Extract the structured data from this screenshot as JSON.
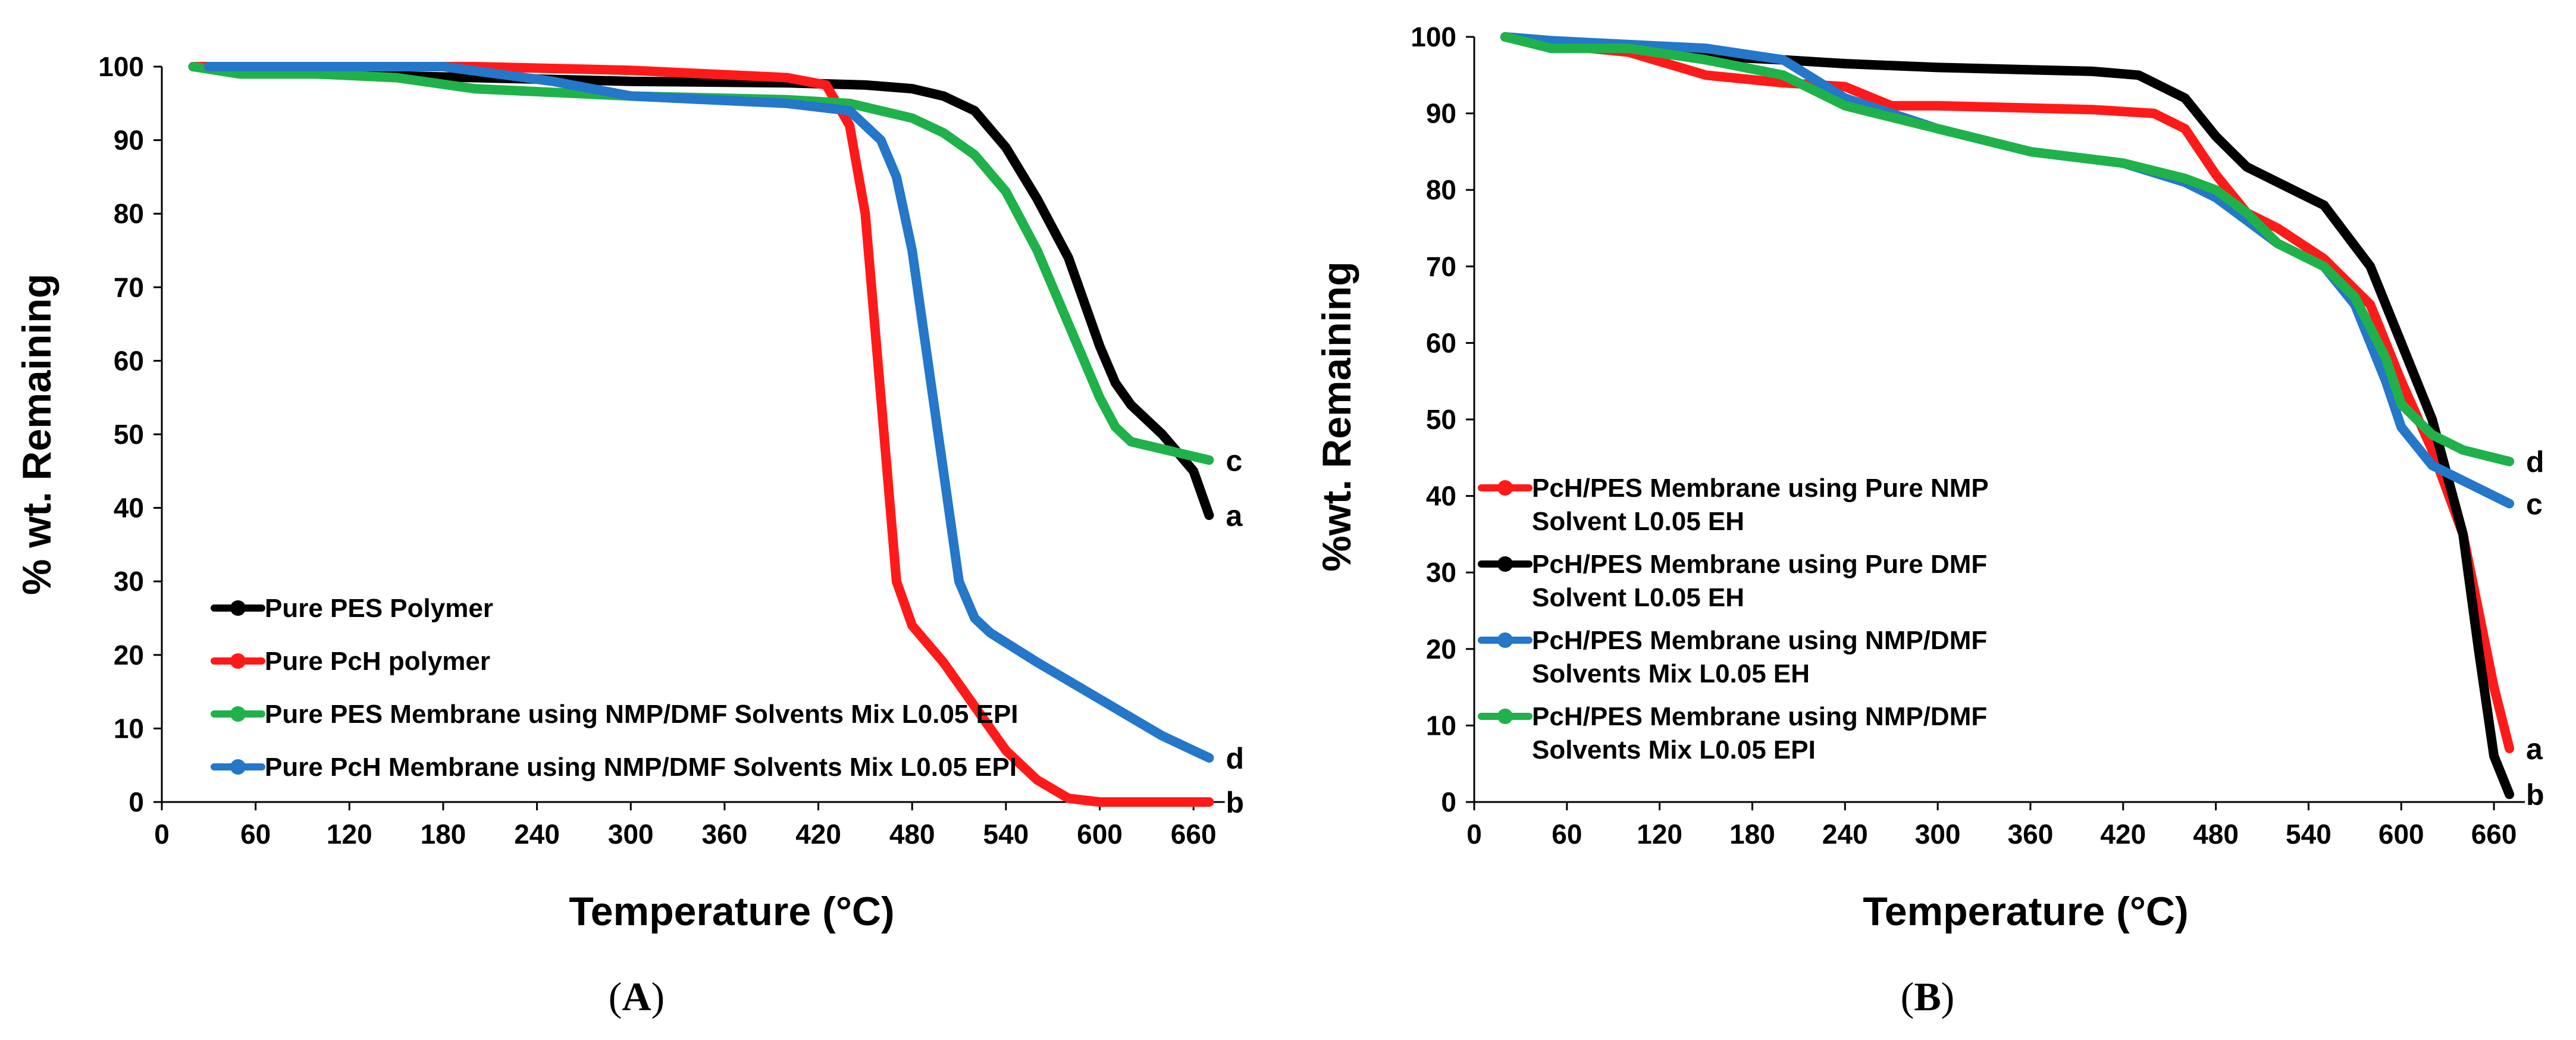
{
  "colors": {
    "red": "#ff1a1a",
    "black": "#000000",
    "green": "#1fb24a",
    "blue": "#2477c9"
  },
  "chart_data": [
    {
      "type": "line",
      "panel": "A",
      "xlabel": "Temperature (°C)",
      "ylabel": "% wt. Remaining",
      "xlim": [
        0,
        690
      ],
      "ylim": [
        0,
        100
      ],
      "xticks": [
        0,
        60,
        120,
        180,
        240,
        300,
        360,
        420,
        480,
        540,
        600,
        660
      ],
      "yticks": [
        0,
        10,
        20,
        30,
        40,
        50,
        60,
        70,
        80,
        90,
        100
      ],
      "grid": false,
      "legend_position": "bottom-left",
      "series": [
        {
          "name": "Pure PES Polymer",
          "color": "black",
          "end_label": "a",
          "x": [
            20,
            100,
            200,
            300,
            400,
            450,
            480,
            500,
            520,
            540,
            560,
            580,
            600,
            610,
            620,
            640,
            660,
            670
          ],
          "y": [
            100,
            99,
            98.5,
            98,
            97.8,
            97.5,
            97,
            96,
            94,
            89,
            82,
            74,
            62,
            57,
            54,
            50,
            45,
            39
          ]
        },
        {
          "name": "Pure PcH polymer",
          "color": "red",
          "end_label": "b",
          "x": [
            20,
            100,
            200,
            300,
            400,
            425,
            440,
            450,
            460,
            470,
            480,
            500,
            520,
            540,
            560,
            580,
            600,
            620,
            650,
            670
          ],
          "y": [
            100,
            100,
            100,
            99.5,
            98.5,
            97.5,
            92,
            80,
            55,
            30,
            24,
            19,
            13,
            7,
            3,
            0.5,
            0,
            0,
            0,
            0
          ]
        },
        {
          "name": "Pure PES Membrane using NMP/DMF Solvents Mix L0.05 EPI",
          "color": "green",
          "end_label": "c",
          "x": [
            20,
            50,
            100,
            150,
            200,
            300,
            400,
            440,
            460,
            480,
            500,
            520,
            540,
            560,
            580,
            600,
            610,
            620,
            640,
            660,
            670
          ],
          "y": [
            100,
            99,
            99,
            98.5,
            97,
            96,
            95.5,
            95,
            94,
            93,
            91,
            88,
            83,
            75,
            65,
            55,
            51,
            49,
            48,
            47,
            46.5
          ]
        },
        {
          "name": "Pure PcH Membrane using NMP/DMF Solvents Mix L0.05 EPI",
          "color": "blue",
          "end_label": "d",
          "x": [
            30,
            100,
            180,
            250,
            300,
            400,
            440,
            460,
            470,
            480,
            490,
            500,
            510,
            520,
            530,
            560,
            600,
            640,
            670
          ],
          "y": [
            100,
            100,
            100,
            98,
            96,
            95,
            94,
            90,
            85,
            75,
            60,
            45,
            30,
            25,
            23,
            19,
            14,
            9,
            6
          ]
        }
      ]
    },
    {
      "type": "line",
      "panel": "B",
      "xlabel": "Temperature (°C)",
      "ylabel": "%wt. Remaining",
      "xlim": [
        0,
        690
      ],
      "ylim": [
        0,
        100
      ],
      "xticks": [
        0,
        60,
        120,
        180,
        240,
        300,
        360,
        420,
        480,
        540,
        600,
        660
      ],
      "yticks": [
        0,
        10,
        20,
        30,
        40,
        50,
        60,
        70,
        80,
        90,
        100
      ],
      "grid": false,
      "legend_position": "middle-left",
      "series": [
        {
          "name_lines": [
            "PcH/PES Membrane using Pure NMP",
            "Solvent L0.05 EH"
          ],
          "color": "red",
          "end_label": "a",
          "x": [
            20,
            50,
            100,
            150,
            200,
            240,
            270,
            300,
            400,
            440,
            460,
            480,
            500,
            520,
            550,
            580,
            600,
            620,
            640,
            660,
            670
          ],
          "y": [
            100,
            99,
            98,
            95,
            94,
            93.5,
            91,
            91,
            90.5,
            90,
            88,
            82,
            77,
            75,
            71,
            65,
            55,
            46,
            35,
            15,
            7
          ]
        },
        {
          "name_lines": [
            "PcH/PES Membrane using Pure DMF",
            "Solvent L0.05 EH"
          ],
          "color": "black",
          "end_label": "b",
          "x": [
            20,
            50,
            100,
            150,
            200,
            240,
            300,
            400,
            430,
            460,
            480,
            500,
            520,
            550,
            580,
            600,
            620,
            640,
            650,
            660,
            670
          ],
          "y": [
            100,
            99,
            98.5,
            97.5,
            97,
            96.5,
            96,
            95.5,
            95,
            92,
            87,
            83,
            81,
            78,
            70,
            60,
            50,
            35,
            20,
            6,
            1
          ]
        },
        {
          "name_lines": [
            "PcH/PES Membrane using NMP/DMF",
            "Solvents Mix L0.05 EH"
          ],
          "color": "blue",
          "end_label": "c",
          "x": [
            20,
            50,
            100,
            150,
            200,
            240,
            300,
            360,
            420,
            460,
            480,
            500,
            520,
            550,
            570,
            590,
            600,
            620,
            640,
            660,
            670
          ],
          "y": [
            100,
            99.5,
            99,
            98.5,
            97,
            92,
            88,
            85,
            83.5,
            81,
            79,
            76,
            73,
            70,
            65,
            55,
            49,
            44,
            42,
            40,
            39
          ]
        },
        {
          "name_lines": [
            "PcH/PES Membrane using NMP/DMF",
            "Solvents Mix L0.05 EPI"
          ],
          "color": "green",
          "end_label": "d",
          "x": [
            20,
            50,
            100,
            150,
            200,
            240,
            300,
            360,
            420,
            460,
            480,
            500,
            520,
            550,
            570,
            590,
            600,
            620,
            640,
            660,
            670
          ],
          "y": [
            100,
            98.5,
            98.5,
            97,
            95,
            91,
            88,
            85,
            83.5,
            81.5,
            80,
            77,
            73,
            70,
            66,
            58,
            52,
            48,
            46,
            45,
            44.5
          ]
        }
      ]
    }
  ],
  "panel_labels": {
    "A": "A",
    "B": "B"
  }
}
